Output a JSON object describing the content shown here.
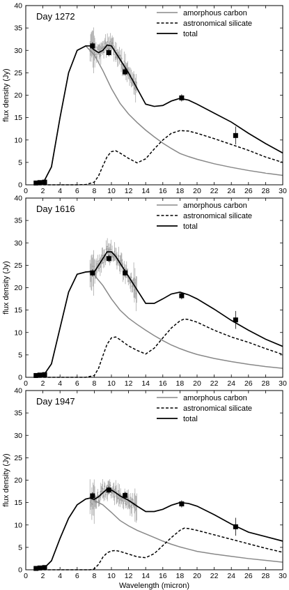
{
  "chart_data": [
    {
      "type": "line",
      "title": "Day 1272",
      "xlabel": "",
      "ylabel": "flux density (Jy)",
      "xlim": [
        0,
        30
      ],
      "ylim": [
        0,
        40
      ],
      "xticks": [
        0,
        2,
        4,
        6,
        8,
        10,
        12,
        14,
        16,
        18,
        20,
        22,
        24,
        26,
        28,
        30
      ],
      "yticks": [
        0,
        5,
        10,
        15,
        20,
        25,
        30,
        35,
        40
      ],
      "legend_position": "top-right",
      "series": [
        {
          "name": "amorphous carbon",
          "style": "solid",
          "color": "#888888",
          "x": [
            1,
            2,
            3,
            4,
            5,
            6,
            7,
            8,
            9,
            10,
            11,
            12,
            13,
            14,
            15,
            16,
            17,
            18,
            19,
            20,
            22,
            24,
            26,
            28,
            30
          ],
          "y": [
            0,
            0.3,
            4,
            15,
            25,
            30,
            31,
            29,
            25.5,
            21.5,
            18.2,
            15.8,
            13.9,
            12.2,
            10.7,
            9.3,
            8.1,
            7,
            6.3,
            5.7,
            4.7,
            3.9,
            3.2,
            2.6,
            2.1
          ]
        },
        {
          "name": "astronomical silicate",
          "style": "dashed",
          "color": "#000000",
          "x": [
            1,
            6,
            7,
            8,
            8.5,
            9,
            9.5,
            10,
            10.5,
            11,
            12,
            13,
            14,
            15,
            16,
            17,
            18,
            19,
            20,
            22,
            24,
            26,
            28,
            30
          ],
          "y": [
            0,
            0,
            0.05,
            0.6,
            2,
            4.2,
            6.3,
            7.4,
            7.6,
            7.1,
            5.9,
            4.9,
            5.8,
            8,
            10,
            11.5,
            12.1,
            12,
            11.5,
            10.3,
            9,
            7.7,
            6.2,
            5
          ]
        },
        {
          "name": "total",
          "style": "solid",
          "color": "#000000",
          "x": [
            1,
            2,
            3,
            4,
            5,
            6,
            7,
            7.5,
            8,
            8.5,
            9,
            9.5,
            10,
            10.5,
            11,
            12,
            13,
            14,
            15,
            16,
            17,
            18,
            19,
            20,
            22,
            24,
            26,
            28,
            30
          ],
          "y": [
            0,
            0.3,
            4,
            15,
            25,
            30,
            31,
            31,
            30.1,
            29.5,
            30,
            31.2,
            31,
            29.5,
            28,
            25,
            21.5,
            18,
            17.5,
            17.7,
            18.7,
            19.3,
            18.9,
            18,
            16,
            14,
            11.5,
            9.2,
            7.1
          ]
        }
      ],
      "photometry": {
        "x": [
          1.2,
          1.65,
          2.2,
          7.8,
          9.7,
          11.6,
          18.2,
          24.5
        ],
        "y": [
          0.4,
          0.5,
          0.6,
          31,
          29.5,
          25.2,
          19.4,
          11
        ]
      },
      "spectrum_range": [
        7.5,
        13
      ]
    },
    {
      "type": "line",
      "title": "Day 1616",
      "xlabel": "",
      "ylabel": "flux density (Jy)",
      "xlim": [
        0,
        30
      ],
      "ylim": [
        0,
        40
      ],
      "xticks": [
        0,
        2,
        4,
        6,
        8,
        10,
        12,
        14,
        16,
        18,
        20,
        22,
        24,
        26,
        28,
        30
      ],
      "yticks": [
        0,
        5,
        10,
        15,
        20,
        25,
        30,
        35,
        40
      ],
      "legend_position": "top-right",
      "series": [
        {
          "name": "amorphous carbon",
          "style": "solid",
          "color": "#888888",
          "x": [
            1,
            2,
            3,
            4,
            5,
            6,
            7,
            7.5,
            8,
            9,
            10,
            11,
            12,
            13,
            14,
            15,
            16,
            17,
            18,
            19,
            20,
            22,
            24,
            26,
            28,
            30
          ],
          "y": [
            0,
            0.2,
            3,
            11,
            19,
            23,
            23.5,
            23.5,
            22.8,
            20.5,
            17.5,
            15,
            13.2,
            11.8,
            10.5,
            9.3,
            8.2,
            7.2,
            6.4,
            5.7,
            5.1,
            4.2,
            3.5,
            2.9,
            2.4,
            2
          ]
        },
        {
          "name": "astronomical silicate",
          "style": "dashed",
          "color": "#000000",
          "x": [
            1,
            7,
            8,
            8.5,
            9,
            9.5,
            10,
            10.5,
            11,
            12,
            13,
            14,
            15,
            16,
            17,
            18,
            18.5,
            19,
            20,
            22,
            24,
            26,
            28,
            30
          ],
          "y": [
            0,
            0,
            0.4,
            2,
            4.8,
            7.4,
            8.8,
            9,
            8.4,
            7,
            6,
            5.2,
            6.5,
            8.8,
            11,
            12.6,
            13,
            12.9,
            12.3,
            10.5,
            9,
            7.8,
            6.4,
            5.1
          ]
        },
        {
          "name": "total",
          "style": "solid",
          "color": "#000000",
          "x": [
            1,
            2,
            3,
            4,
            5,
            6,
            7,
            7.5,
            8,
            8.5,
            9,
            9.5,
            10,
            10.5,
            11,
            12,
            13,
            14,
            15,
            16,
            17,
            18,
            19,
            20,
            22,
            24,
            26,
            28,
            30
          ],
          "y": [
            0,
            0.2,
            3,
            11,
            19,
            23,
            23.5,
            23.6,
            23.5,
            25,
            26.5,
            28,
            28,
            27,
            25.5,
            22.5,
            19.5,
            16.5,
            16.5,
            17.5,
            18.6,
            19,
            18.4,
            17.5,
            15.2,
            12.7,
            10.5,
            8.5,
            6.9
          ]
        }
      ],
      "photometry": {
        "x": [
          1.2,
          1.65,
          2.2,
          7.8,
          9.7,
          11.6,
          18.2,
          24.5
        ],
        "y": [
          0.4,
          0.5,
          0.6,
          23.3,
          26.5,
          23.3,
          18.2,
          12.8
        ]
      },
      "spectrum_range": [
        7.5,
        13
      ]
    },
    {
      "type": "line",
      "title": "Day 1947",
      "xlabel": "Wavelength (micron)",
      "ylabel": "flux density (Jy)",
      "xlim": [
        0,
        30
      ],
      "ylim": [
        0,
        40
      ],
      "xticks": [
        0,
        2,
        4,
        6,
        8,
        10,
        12,
        14,
        16,
        18,
        20,
        22,
        24,
        26,
        28,
        30
      ],
      "yticks": [
        0,
        5,
        10,
        15,
        20,
        25,
        30,
        35,
        40
      ],
      "legend_position": "top-right",
      "series": [
        {
          "name": "amorphous carbon",
          "style": "solid",
          "color": "#888888",
          "x": [
            1,
            2,
            3,
            4,
            5,
            6,
            7,
            7.5,
            8,
            9,
            10,
            11,
            12,
            13,
            14,
            15,
            16,
            17,
            18,
            19,
            20,
            22,
            24,
            26,
            28,
            30
          ],
          "y": [
            0,
            0.1,
            2,
            7,
            11.5,
            14.5,
            15.8,
            16,
            15.5,
            14.5,
            12.8,
            11,
            9.8,
            8.8,
            8,
            7.2,
            6.4,
            5.7,
            5.1,
            4.6,
            4.1,
            3.5,
            3,
            2.5,
            2.1,
            1.7
          ]
        },
        {
          "name": "astronomical silicate",
          "style": "dashed",
          "color": "#000000",
          "x": [
            1,
            7.5,
            8,
            8.5,
            9,
            9.5,
            10,
            10.5,
            11,
            12,
            13,
            14,
            15,
            16,
            17,
            18,
            18.5,
            19,
            20,
            22,
            24,
            26,
            28,
            30
          ],
          "y": [
            0,
            0,
            0.2,
            1.2,
            2.8,
            3.8,
            4.2,
            4.3,
            4.1,
            3.5,
            2.9,
            2.7,
            3.6,
            5.4,
            7.2,
            8.8,
            9.3,
            9.2,
            8.8,
            7.8,
            6.8,
            5.8,
            4.8,
            3.9
          ]
        },
        {
          "name": "total",
          "style": "solid",
          "color": "#000000",
          "x": [
            1,
            2,
            3,
            4,
            5,
            6,
            7,
            7.5,
            8,
            8.5,
            9,
            9.5,
            10,
            10.5,
            11,
            12,
            13,
            14,
            15,
            16,
            17,
            18,
            19,
            20,
            22,
            24,
            26,
            28,
            30
          ],
          "y": [
            0,
            0.1,
            2,
            7,
            11.5,
            14.5,
            15.8,
            16,
            15.7,
            16.3,
            17.2,
            18,
            17.8,
            17.2,
            16.5,
            15.5,
            14.2,
            13,
            13,
            13.5,
            14.4,
            15,
            14.8,
            14.2,
            12.3,
            10.2,
            8.4,
            7.4,
            6.4
          ]
        }
      ],
      "photometry": {
        "x": [
          1.2,
          1.65,
          2.2,
          7.8,
          9.7,
          11.6,
          18.2,
          24.5
        ],
        "y": [
          0.3,
          0.4,
          0.5,
          16.5,
          17.8,
          16.6,
          14.7,
          9.6
        ]
      },
      "spectrum_range": [
        7.5,
        13
      ]
    }
  ]
}
